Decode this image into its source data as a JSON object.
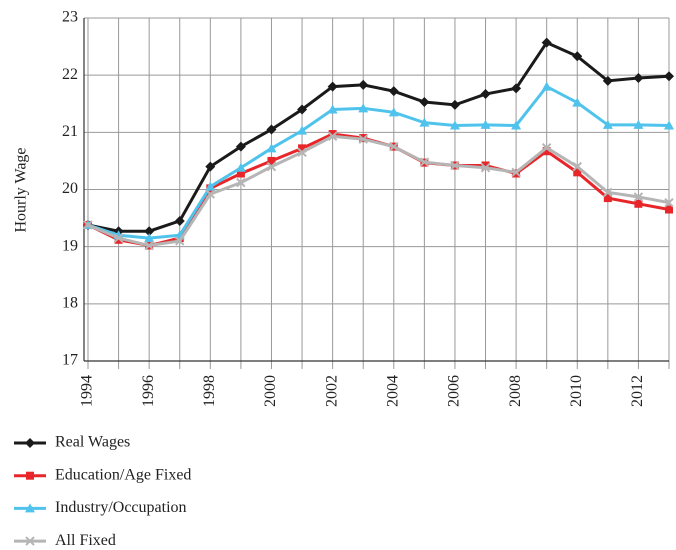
{
  "chart_data": {
    "type": "line",
    "y_label": "Hourly Wage",
    "x": [
      1994,
      1995,
      1996,
      1997,
      1998,
      1999,
      2000,
      2001,
      2002,
      2003,
      2004,
      2005,
      2006,
      2007,
      2008,
      2009,
      2010,
      2011,
      2012,
      2013
    ],
    "xlim": [
      1994,
      2013
    ],
    "xticks": [
      1994,
      1996,
      1998,
      2000,
      2002,
      2004,
      2006,
      2008,
      2010,
      2012
    ],
    "xminorticks": [
      1995,
      1997,
      1999,
      2001,
      2003,
      2005,
      2007,
      2009,
      2011,
      2013
    ],
    "ylim": [
      17,
      23
    ],
    "yticks": [
      17,
      18,
      19,
      20,
      21,
      22,
      23
    ],
    "grid": true,
    "series": [
      {
        "name": "Real Wages",
        "color": "#1a1a1a",
        "marker": "diamond",
        "values": [
          19.38,
          19.27,
          19.27,
          19.45,
          20.4,
          20.75,
          21.05,
          21.4,
          21.8,
          21.83,
          21.72,
          21.53,
          21.48,
          21.67,
          21.77,
          22.57,
          22.33,
          21.9,
          21.95,
          21.98
        ]
      },
      {
        "name": "Education/Age Fixed",
        "color": "#e8262a",
        "marker": "square",
        "values": [
          19.38,
          19.12,
          19.02,
          19.15,
          20.02,
          20.28,
          20.5,
          20.72,
          20.97,
          20.9,
          20.75,
          20.47,
          20.42,
          20.42,
          20.28,
          20.67,
          20.3,
          19.85,
          19.75,
          19.65
        ]
      },
      {
        "name": "Industry/Occupation",
        "color": "#4fc3ec",
        "marker": "triangle",
        "values": [
          19.38,
          19.2,
          19.15,
          19.2,
          20.05,
          20.38,
          20.72,
          21.03,
          21.4,
          21.42,
          21.35,
          21.17,
          21.12,
          21.13,
          21.12,
          21.8,
          21.52,
          21.13,
          21.13,
          21.12
        ]
      },
      {
        "name": "All Fixed",
        "color": "#b5b5b5",
        "marker": "x",
        "values": [
          19.38,
          19.15,
          19.02,
          19.1,
          19.92,
          20.12,
          20.4,
          20.65,
          20.93,
          20.88,
          20.75,
          20.48,
          20.42,
          20.38,
          20.3,
          20.73,
          20.4,
          19.95,
          19.87,
          19.77
        ]
      }
    ],
    "legend": "bottom-left"
  }
}
